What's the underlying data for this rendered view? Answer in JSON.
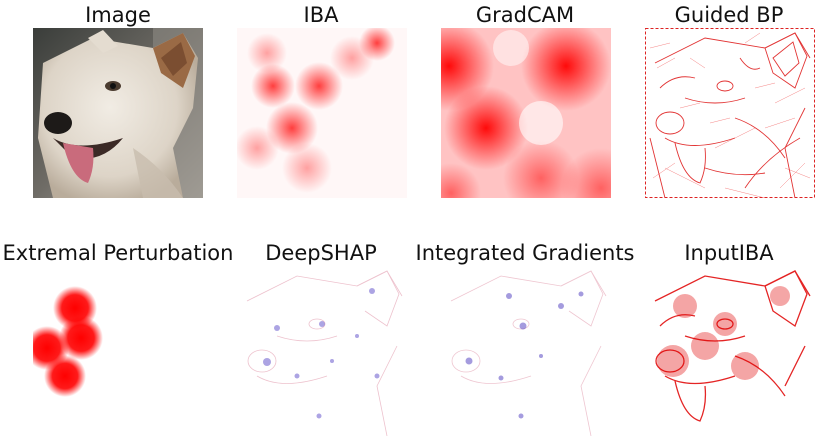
{
  "figure": {
    "panels": [
      {
        "id": "image",
        "title": "Image"
      },
      {
        "id": "iba",
        "title": "IBA"
      },
      {
        "id": "gradcam",
        "title": "GradCAM"
      },
      {
        "id": "guided-bp",
        "title": "Guided BP"
      },
      {
        "id": "extremal",
        "title": "Extremal Perturbation"
      },
      {
        "id": "deepshap",
        "title": "DeepSHAP"
      },
      {
        "id": "integrated-gradients",
        "title": "Integrated Gradients"
      },
      {
        "id": "inputiba",
        "title": "InputIBA"
      }
    ],
    "colors": {
      "heat": "#ff0000",
      "negative": "#3b3bd0",
      "background": "#ffffff"
    }
  }
}
